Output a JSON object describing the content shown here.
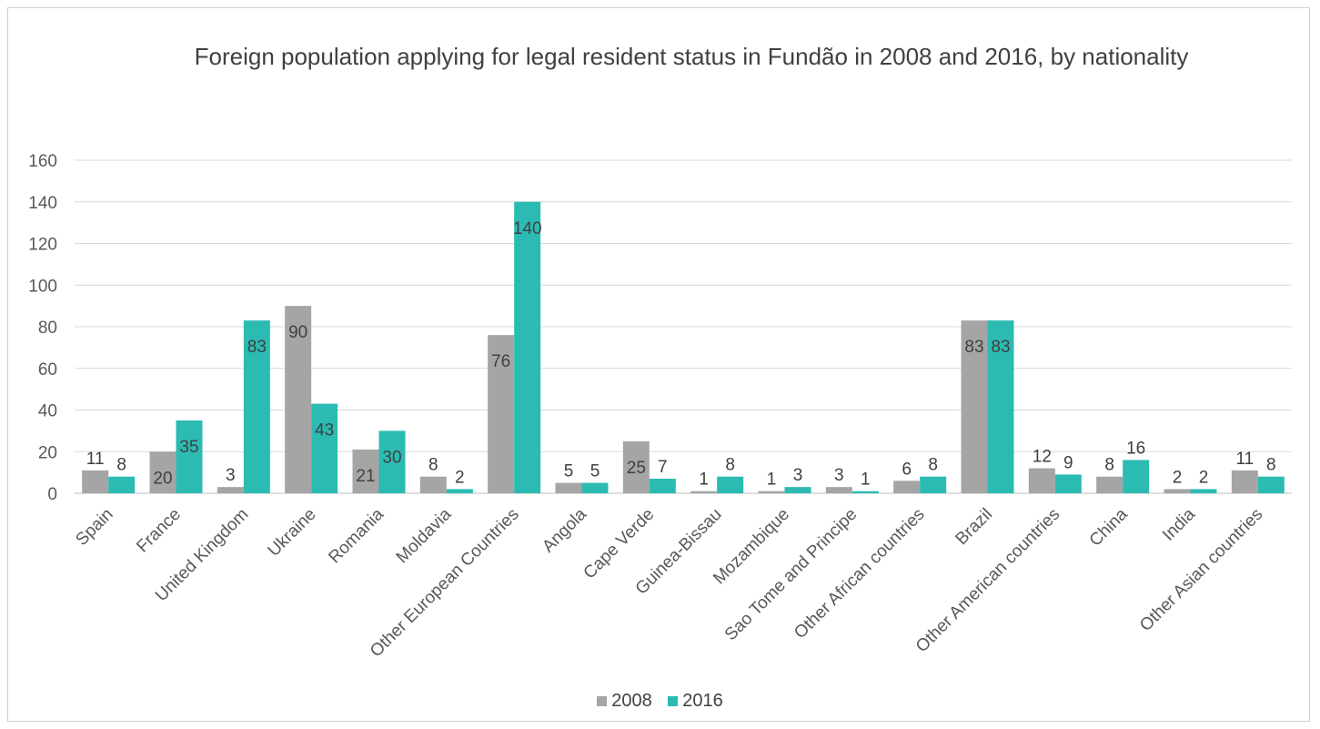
{
  "chart_data": {
    "type": "bar",
    "title": "Foreign population applying for legal resident status in Fundão in 2008 and 2016, by nationality",
    "categories": [
      "Spain",
      "France",
      "United Kingdom",
      "Ukraine",
      "Romania",
      "Moldavia",
      "Other European Countries",
      "Angola",
      "Cape Verde",
      "Guinea-Bissau",
      "Mozambique",
      "Sao Tome and Principe",
      "Other African countries",
      "Brazil",
      "Other American countries",
      "China",
      "India",
      "Other Asian countries"
    ],
    "series": [
      {
        "name": "2008",
        "color": "#a5a5a5",
        "values": [
          11,
          20,
          3,
          90,
          21,
          8,
          76,
          5,
          25,
          1,
          1,
          3,
          6,
          83,
          12,
          8,
          2,
          11
        ]
      },
      {
        "name": "2016",
        "color": "#2bbbb3",
        "values": [
          8,
          35,
          83,
          43,
          30,
          2,
          140,
          5,
          7,
          8,
          3,
          1,
          8,
          83,
          9,
          16,
          2,
          8
        ]
      }
    ],
    "ylim": [
      0,
      160
    ],
    "yticks": [
      0,
      20,
      40,
      60,
      80,
      100,
      120,
      140,
      160
    ],
    "grid": true,
    "legend": "bottom",
    "xlabel": "",
    "ylabel": ""
  }
}
